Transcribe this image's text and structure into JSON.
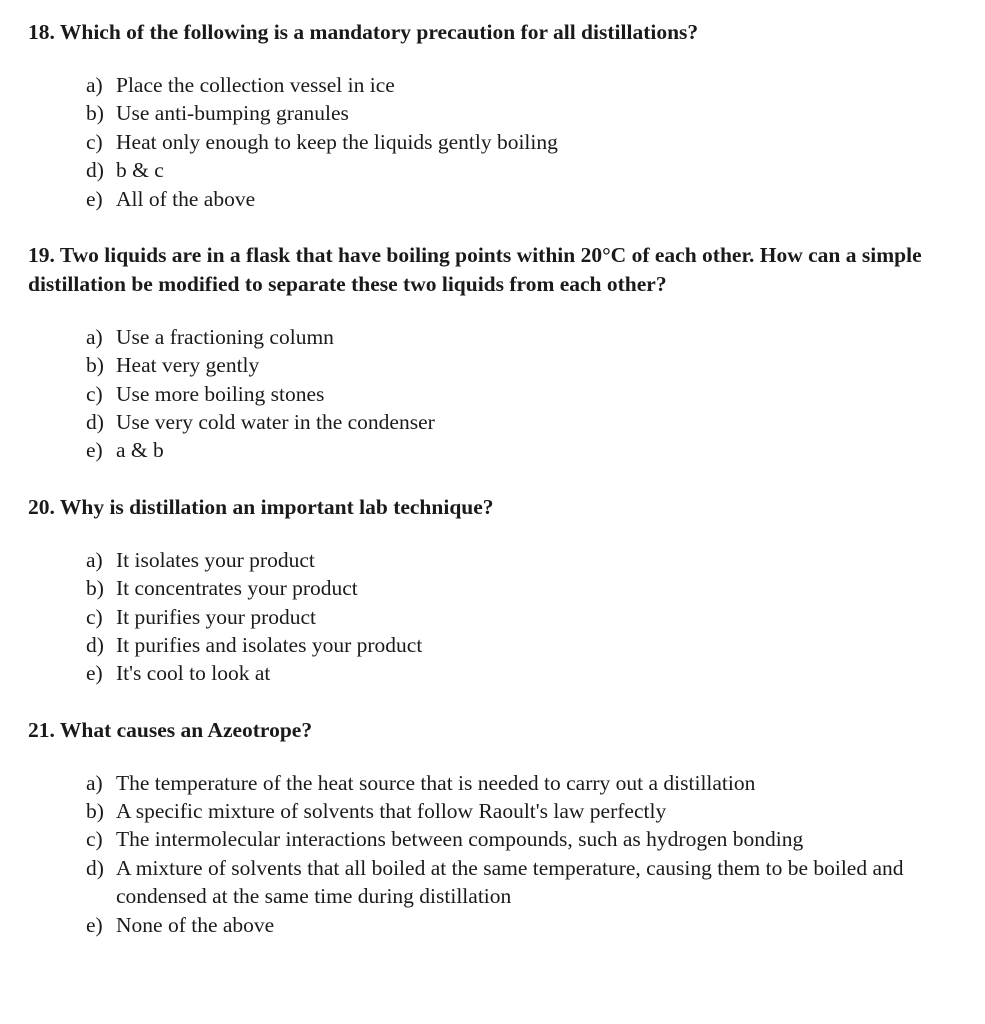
{
  "page": {
    "background_color": "#ffffff",
    "text_color": "#1a1a1a",
    "font_family": "Times New Roman",
    "question_fontsize": 21.5,
    "option_fontsize": 21.5
  },
  "questions": [
    {
      "number": "18.",
      "text": "Which of the following is a mandatory precaution for all distillations?",
      "options": [
        {
          "letter": "a)",
          "text": "Place the collection vessel in ice"
        },
        {
          "letter": "b)",
          "text": "Use anti-bumping granules"
        },
        {
          "letter": "c)",
          "text": "Heat only enough to keep the liquids gently boiling"
        },
        {
          "letter": "d)",
          "text": "b & c"
        },
        {
          "letter": "e)",
          "text": "All of the above"
        }
      ]
    },
    {
      "number": "19.",
      "text": "Two liquids are in a flask that have boiling points within 20°C of each other. How can a simple distillation be modified to separate these two liquids from each other?",
      "options": [
        {
          "letter": "a)",
          "text": "Use a fractioning column"
        },
        {
          "letter": "b)",
          "text": "Heat very gently"
        },
        {
          "letter": "c)",
          "text": "Use more boiling stones"
        },
        {
          "letter": "d)",
          "text": "Use very cold water in the condenser"
        },
        {
          "letter": "e)",
          "text": "a & b"
        }
      ]
    },
    {
      "number": "20.",
      "text": "Why is distillation an important lab technique?",
      "options": [
        {
          "letter": "a)",
          "text": "It isolates your product"
        },
        {
          "letter": "b)",
          "text": "It concentrates your product"
        },
        {
          "letter": "c)",
          "text": "It purifies your product"
        },
        {
          "letter": "d)",
          "text": "It purifies and isolates your product"
        },
        {
          "letter": "e)",
          "text": "It's cool to look at"
        }
      ]
    },
    {
      "number": "21.",
      "text": "What causes an Azeotrope?",
      "options": [
        {
          "letter": "a)",
          "text": "The temperature of the heat source that is needed to carry out a distillation"
        },
        {
          "letter": "b)",
          "text": "A specific mixture of solvents that follow Raoult's law perfectly"
        },
        {
          "letter": "c)",
          "text": "The intermolecular interactions between compounds, such as hydrogen bonding"
        },
        {
          "letter": "d)",
          "text": "A mixture of solvents that all boiled at the same temperature, causing them to be boiled and condensed at the same time during distillation"
        },
        {
          "letter": "e)",
          "text": "None of the above"
        }
      ]
    }
  ]
}
